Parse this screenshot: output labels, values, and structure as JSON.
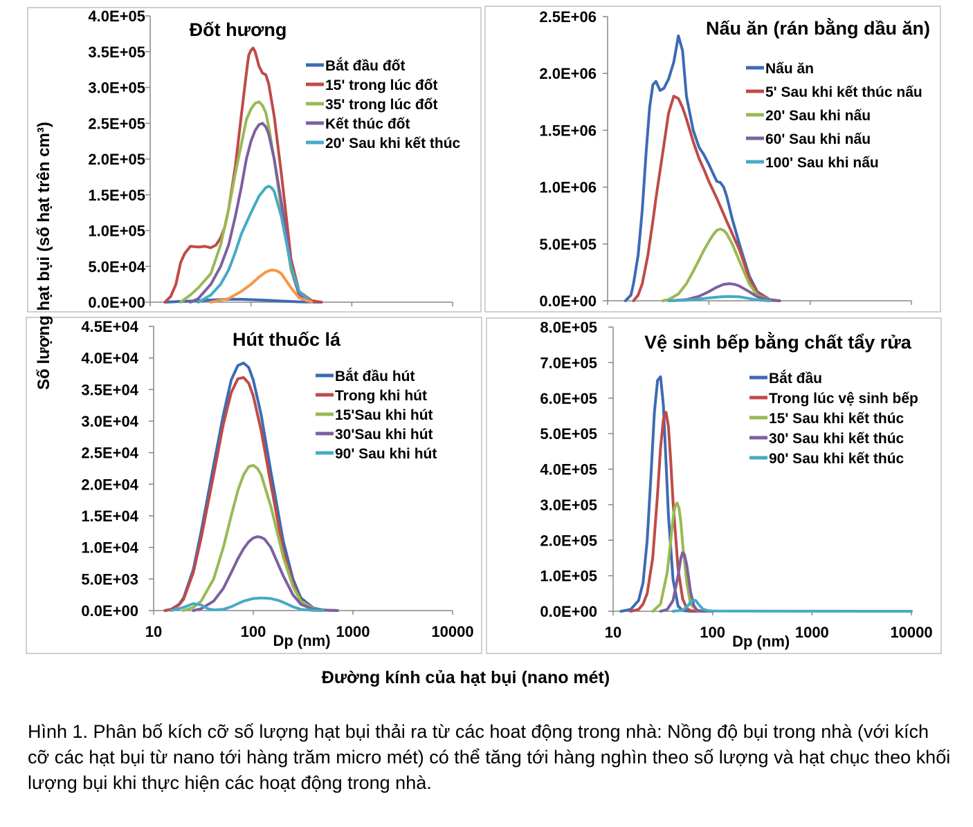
{
  "figure": {
    "ylabel": "Số lượng hạt bụi (số hạt trên cm³)",
    "xlabel": "Đường kính của hạt bụi (nano mét)",
    "caption": "Hình 1. Phân bố kích cỡ số lượng hạt bụi thải ra từ các hoat động trong nhà: Nồng độ bụi trong nhà (với kích cỡ các hạt bụi từ nano tới hàng trăm micro mét) có thể tăng tới hàng nghìn theo số lượng và hạt chục theo khối lượng bụi khi thực hiện các hoạt động trong nhà."
  },
  "chart_data": [
    {
      "type": "line",
      "title": "Đốt hương",
      "xscale": "log",
      "xlim": [
        10,
        10000
      ],
      "ylim": [
        0,
        400000
      ],
      "ytick_labels": [
        "0.0E+00",
        "5.0E+04",
        "1.0E+05",
        "1.5E+05",
        "2.0E+05",
        "2.5E+05",
        "3.0E+05",
        "3.5E+05",
        "4.0E+05"
      ],
      "xtick_labels": [],
      "xlabel": "",
      "legend": "top-right",
      "series": [
        {
          "name": "Bắt đầu đốt",
          "color": "#3d6bb3",
          "x": [
            14,
            20,
            30,
            40,
            60,
            80,
            100,
            150,
            200,
            300,
            500
          ],
          "y": [
            0,
            1000,
            2000,
            3000,
            4000,
            4000,
            3500,
            2500,
            1500,
            500,
            0
          ]
        },
        {
          "name": "15' trong lúc đốt",
          "color": "#be4b48",
          "x": [
            14,
            16,
            18,
            20,
            22,
            25,
            30,
            35,
            40,
            45,
            50,
            55,
            60,
            70,
            80,
            90,
            95,
            100,
            105,
            110,
            120,
            130,
            140,
            150,
            170,
            200,
            250,
            300,
            400,
            500
          ],
          "y": [
            0,
            8000,
            25000,
            55000,
            68000,
            78000,
            77000,
            78000,
            76000,
            80000,
            90000,
            105000,
            130000,
            190000,
            260000,
            320000,
            345000,
            352000,
            355000,
            350000,
            330000,
            320000,
            318000,
            305000,
            260000,
            180000,
            60000,
            15000,
            2000,
            0
          ]
        },
        {
          "name": "35' trong lúc đốt",
          "color": "#98b954",
          "x": [
            20,
            25,
            30,
            40,
            50,
            60,
            70,
            80,
            90,
            100,
            110,
            120,
            130,
            140,
            150,
            170,
            200,
            250,
            300,
            400
          ],
          "y": [
            0,
            10000,
            20000,
            40000,
            80000,
            130000,
            180000,
            220000,
            255000,
            270000,
            278000,
            280000,
            275000,
            265000,
            245000,
            200000,
            130000,
            45000,
            10000,
            0
          ]
        },
        {
          "name": "Kết thúc đốt",
          "color": "#7d60a0",
          "x": [
            25,
            30,
            40,
            50,
            60,
            70,
            80,
            90,
            100,
            110,
            120,
            130,
            140,
            150,
            170,
            200,
            250,
            300,
            400
          ],
          "y": [
            0,
            5000,
            25000,
            50000,
            80000,
            120000,
            160000,
            200000,
            225000,
            240000,
            248000,
            250000,
            245000,
            235000,
            200000,
            140000,
            50000,
            10000,
            0
          ]
        },
        {
          "name": "20' Sau khi kết thúc",
          "color": "#46aac5",
          "x": [
            30,
            40,
            50,
            60,
            70,
            80,
            100,
            120,
            140,
            150,
            160,
            170,
            200,
            250,
            300,
            400
          ],
          "y": [
            0,
            10000,
            25000,
            45000,
            70000,
            95000,
            125000,
            148000,
            160000,
            162000,
            160000,
            155000,
            120000,
            50000,
            15000,
            0
          ]
        },
        {
          "name": "",
          "color": "#f79646",
          "x": [
            40,
            60,
            80,
            100,
            120,
            140,
            160,
            180,
            200,
            250,
            300,
            400
          ],
          "y": [
            0,
            5000,
            15000,
            25000,
            35000,
            42000,
            45000,
            44000,
            40000,
            20000,
            6000,
            0
          ]
        }
      ]
    },
    {
      "type": "line",
      "title": "Nấu ăn (rán bằng dầu ăn)",
      "xscale": "log",
      "xlim": [
        10,
        10000
      ],
      "ylim": [
        0,
        2500000
      ],
      "ytick_labels": [
        "0.0E+00",
        "5.0E+05",
        "1.0E+06",
        "1.5E+06",
        "2.0E+06",
        "2.5E+06"
      ],
      "xtick_labels": [],
      "xlabel": "",
      "legend": "top-right",
      "series": [
        {
          "name": "Nấu ăn",
          "color": "#3d6bb3",
          "x": [
            15,
            17,
            18,
            20,
            22,
            24,
            26,
            28,
            30,
            33,
            36,
            40,
            45,
            50,
            55,
            60,
            70,
            80,
            90,
            100,
            110,
            120,
            130,
            140,
            150,
            170,
            200,
            250,
            300,
            400,
            500
          ],
          "y": [
            0,
            50000,
            150000,
            400000,
            800000,
            1300000,
            1700000,
            1900000,
            1930000,
            1850000,
            1870000,
            1950000,
            2100000,
            2330000,
            2200000,
            1800000,
            1500000,
            1350000,
            1280000,
            1200000,
            1120000,
            1050000,
            1040000,
            1000000,
            920000,
            720000,
            500000,
            220000,
            80000,
            10000,
            0
          ]
        },
        {
          "name": "5' Sau khi kết thúc nấu",
          "color": "#be4b48",
          "x": [
            18,
            20,
            22,
            25,
            28,
            30,
            35,
            40,
            45,
            50,
            55,
            60,
            70,
            80,
            90,
            100,
            120,
            150,
            200,
            250,
            300,
            400,
            500
          ],
          "y": [
            0,
            50000,
            150000,
            400000,
            700000,
            900000,
            1300000,
            1650000,
            1800000,
            1780000,
            1700000,
            1600000,
            1400000,
            1250000,
            1150000,
            1050000,
            900000,
            700000,
            450000,
            200000,
            70000,
            10000,
            0
          ]
        },
        {
          "name": "20' Sau khi nấu",
          "color": "#98b954",
          "x": [
            35,
            40,
            50,
            60,
            70,
            80,
            90,
            100,
            110,
            120,
            130,
            140,
            150,
            170,
            200,
            250,
            300,
            400,
            500
          ],
          "y": [
            0,
            10000,
            60000,
            150000,
            260000,
            360000,
            450000,
            520000,
            580000,
            620000,
            630000,
            620000,
            590000,
            500000,
            350000,
            150000,
            50000,
            5000,
            0
          ]
        },
        {
          "name": "60' Sau khi nấu",
          "color": "#7d60a0",
          "x": [
            40,
            60,
            80,
            100,
            120,
            140,
            160,
            180,
            200,
            250,
            300,
            400,
            500
          ],
          "y": [
            0,
            10000,
            40000,
            80000,
            120000,
            145000,
            150000,
            145000,
            130000,
            80000,
            35000,
            5000,
            0
          ]
        },
        {
          "name": "100' Sau khi nấu",
          "color": "#46aac5",
          "x": [
            40,
            60,
            80,
            100,
            130,
            160,
            200,
            250,
            300,
            400
          ],
          "y": [
            0,
            5000,
            15000,
            25000,
            35000,
            38000,
            35000,
            20000,
            8000,
            0
          ]
        }
      ]
    },
    {
      "type": "line",
      "title": "Hút thuốc lá",
      "xscale": "log",
      "xlim": [
        10,
        10000
      ],
      "ylim": [
        0,
        45000
      ],
      "ytick_labels": [
        "0.0E+00",
        "5.0E+03",
        "1.0E+04",
        "1.5E+04",
        "2.0E+04",
        "2.5E+04",
        "3.0E+04",
        "3.5E+04",
        "4.0E+04",
        "4.5E+04"
      ],
      "xtick_labels": [
        "10",
        "100",
        "1000",
        "10000"
      ],
      "xlabel": "Dp (nm)",
      "legend": "top-right",
      "series": [
        {
          "name": "Bắt đầu hút",
          "color": "#3d6bb3",
          "x": [
            13,
            15,
            18,
            20,
            25,
            30,
            40,
            50,
            60,
            70,
            80,
            90,
            100,
            120,
            150,
            200,
            250,
            300,
            400,
            500,
            700
          ],
          "y": [
            0,
            200,
            1000,
            2000,
            6500,
            12500,
            23000,
            31000,
            36500,
            38800,
            39200,
            38500,
            36500,
            31000,
            22000,
            11000,
            5000,
            2000,
            400,
            100,
            0
          ]
        },
        {
          "name": "Trong khi hút",
          "color": "#be4b48",
          "x": [
            13,
            15,
            18,
            20,
            25,
            30,
            40,
            50,
            60,
            70,
            80,
            90,
            100,
            120,
            150,
            200,
            250,
            300,
            400,
            500,
            700
          ],
          "y": [
            0,
            200,
            900,
            1800,
            6000,
            11500,
            21500,
            29500,
            34500,
            36700,
            36900,
            36000,
            34000,
            28500,
            20000,
            9500,
            4200,
            1600,
            300,
            80,
            0
          ]
        },
        {
          "name": "15'Sau khi hút",
          "color": "#98b954",
          "x": [
            20,
            25,
            30,
            40,
            50,
            60,
            70,
            80,
            90,
            100,
            110,
            120,
            150,
            200,
            250,
            300,
            400,
            500,
            700
          ],
          "y": [
            0,
            500,
            1500,
            5000,
            10000,
            15000,
            19000,
            21500,
            22800,
            23000,
            22500,
            21500,
            16500,
            8500,
            3800,
            1500,
            300,
            50,
            0
          ]
        },
        {
          "name": "30'Sau khi hút",
          "color": "#7d60a0",
          "x": [
            25,
            30,
            40,
            50,
            60,
            70,
            80,
            90,
            100,
            110,
            120,
            130,
            150,
            200,
            250,
            300,
            400,
            500,
            700
          ],
          "y": [
            0,
            300,
            1500,
            3500,
            6000,
            8200,
            9800,
            10900,
            11500,
            11700,
            11600,
            11300,
            10000,
            5500,
            2500,
            1000,
            200,
            50,
            0
          ]
        },
        {
          "name": "90' Sau khi hút",
          "color": "#46aac5",
          "x": [
            15,
            20,
            25,
            30,
            35,
            40,
            50,
            60,
            70,
            80,
            100,
            120,
            150,
            180,
            200,
            250,
            300,
            400,
            500
          ],
          "y": [
            0,
            500,
            1100,
            900,
            300,
            100,
            200,
            600,
            1100,
            1500,
            1900,
            2000,
            1900,
            1600,
            1300,
            600,
            200,
            20,
            0
          ]
        }
      ]
    },
    {
      "type": "line",
      "title": "Vệ sinh bếp bằng chất tẩy rửa",
      "xscale": "log",
      "xlim": [
        10,
        10000
      ],
      "ylim": [
        0,
        800000
      ],
      "ytick_labels": [
        "0.0E+00",
        "1.0E+05",
        "2.0E+05",
        "3.0E+05",
        "4.0E+05",
        "5.0E+05",
        "6.0E+05",
        "7.0E+05",
        "8.0E+05"
      ],
      "xtick_labels": [
        "10",
        "100",
        "1000",
        "10000"
      ],
      "xlabel": "Dp (nm)",
      "legend": "top-right",
      "series": [
        {
          "name": "Bắt đầu",
          "color": "#3d6bb3",
          "x": [
            12,
            15,
            18,
            20,
            22,
            24,
            26,
            28,
            30,
            32,
            34,
            36,
            40,
            45,
            50,
            60,
            70,
            100
          ],
          "y": [
            0,
            5000,
            30000,
            80000,
            200000,
            380000,
            560000,
            650000,
            660000,
            580000,
            420000,
            270000,
            90000,
            15000,
            2000,
            0,
            0,
            0
          ]
        },
        {
          "name": "Trong lúc vệ sinh bếp",
          "color": "#be4b48",
          "x": [
            15,
            18,
            20,
            22,
            25,
            28,
            30,
            32,
            34,
            36,
            38,
            40,
            45,
            50,
            55,
            60,
            70,
            100
          ],
          "y": [
            0,
            5000,
            20000,
            50000,
            150000,
            330000,
            460000,
            540000,
            560000,
            520000,
            420000,
            310000,
            120000,
            35000,
            8000,
            2000,
            0,
            0
          ]
        },
        {
          "name": "15' Sau khi kết thúc",
          "color": "#98b954",
          "x": [
            25,
            30,
            35,
            38,
            40,
            42,
            44,
            46,
            48,
            50,
            55,
            60,
            70,
            80,
            100
          ],
          "y": [
            0,
            20000,
            110000,
            200000,
            260000,
            295000,
            305000,
            290000,
            250000,
            190000,
            80000,
            20000,
            2000,
            0,
            0
          ]
        },
        {
          "name": "30' Sau khi kết thúc",
          "color": "#7d60a0",
          "x": [
            30,
            35,
            40,
            45,
            48,
            50,
            52,
            55,
            58,
            60,
            65,
            70,
            80,
            100
          ],
          "y": [
            0,
            5000,
            30000,
            100000,
            150000,
            165000,
            160000,
            130000,
            85000,
            55000,
            15000,
            3000,
            0,
            0
          ]
        },
        {
          "name": "90' Sau khi kết thúc",
          "color": "#46aac5",
          "x": [
            40,
            50,
            55,
            60,
            64,
            68,
            72,
            80,
            90,
            100,
            200,
            1000,
            10000
          ],
          "y": [
            0,
            3000,
            12000,
            25000,
            32000,
            30000,
            20000,
            6000,
            1500,
            800,
            300,
            100,
            0
          ]
        }
      ]
    }
  ]
}
